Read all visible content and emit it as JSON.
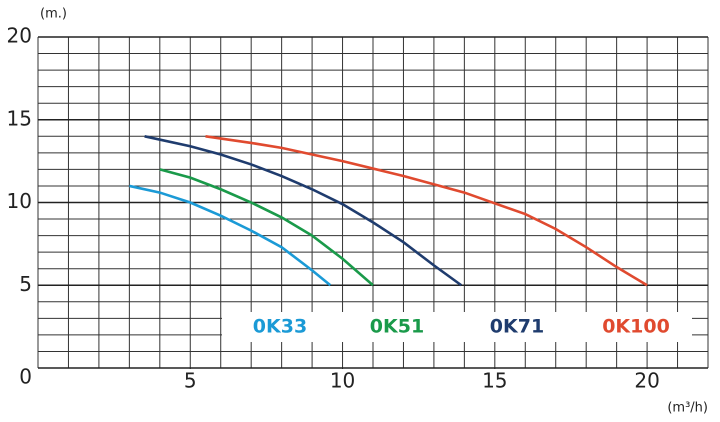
{
  "chart_data": {
    "type": "line",
    "y_label": "(m.)",
    "x_label": "(m³/h)",
    "xlim": [
      0,
      22
    ],
    "ylim": [
      0,
      20
    ],
    "xticks": [
      5,
      10,
      15,
      20
    ],
    "yticks": [
      0,
      5,
      10,
      15,
      20
    ],
    "grid": true,
    "grid_step": 1,
    "series": [
      {
        "name": "0K33",
        "color": "#1b9ad6",
        "x": [
          3,
          4,
          5,
          6,
          7,
          8,
          9,
          9.6
        ],
        "values": [
          11,
          10.6,
          10,
          9.2,
          8.3,
          7.3,
          5.9,
          5
        ]
      },
      {
        "name": "0K51",
        "color": "#1a9a4a",
        "x": [
          4,
          5,
          6,
          7,
          8,
          9,
          10,
          11
        ],
        "values": [
          12,
          11.5,
          10.8,
          10,
          9.1,
          8,
          6.6,
          5
        ]
      },
      {
        "name": "0K71",
        "color": "#1f3c6e",
        "x": [
          3.5,
          5,
          6,
          7,
          8,
          9,
          10,
          11,
          12,
          13,
          13.9
        ],
        "values": [
          14,
          13.4,
          12.9,
          12.3,
          11.6,
          10.8,
          9.9,
          8.8,
          7.6,
          6.2,
          5
        ]
      },
      {
        "name": "0K100",
        "color": "#e04a2f",
        "x": [
          5.5,
          7,
          8,
          10,
          12,
          14,
          16,
          17,
          18,
          19,
          20
        ],
        "values": [
          14,
          13.6,
          13.3,
          12.5,
          11.6,
          10.6,
          9.3,
          8.4,
          7.3,
          6.1,
          5
        ]
      }
    ]
  }
}
